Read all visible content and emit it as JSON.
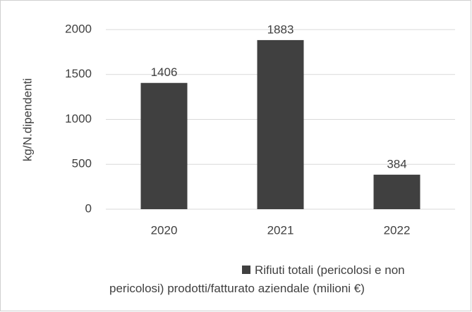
{
  "chart_data": {
    "type": "bar",
    "categories": [
      "2020",
      "2021",
      "2022"
    ],
    "series": [
      {
        "name": "Rifiuti totali (pericolosi e non pericolosi) prodotti/fatturato aziendale (milioni €)",
        "color": "#404040",
        "values": [
          1406,
          1883,
          384
        ]
      }
    ],
    "y_label": "kg/N.dipendenti",
    "ylim": [
      0,
      2000
    ],
    "yticks": [
      0,
      500,
      1000,
      1500,
      2000
    ],
    "grid": true,
    "legend": "bottom"
  }
}
